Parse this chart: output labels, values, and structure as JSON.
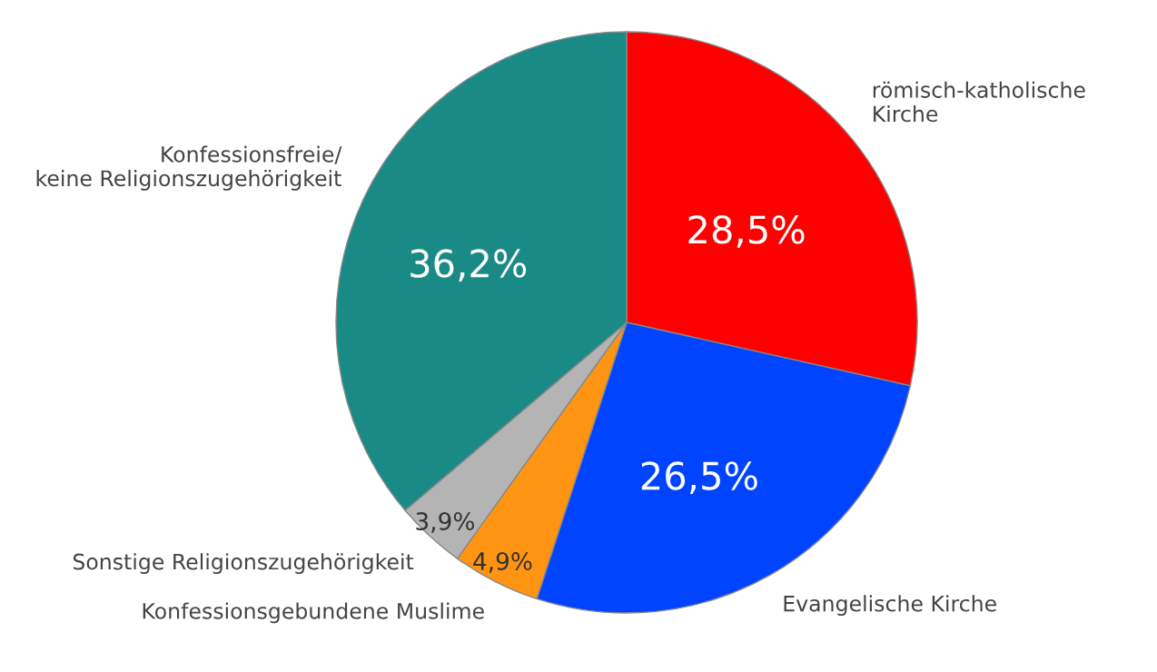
{
  "chart_data": {
    "type": "pie",
    "categories": [
      "römisch-katholische\nKirche",
      "Evangelische Kirche",
      "Konfessionsgebundene Muslime",
      "Sonstige Religionszugehörigkeit",
      "Konfessionsfreie/\nkeine Religionszugehörigkeit"
    ],
    "values": [
      28.5,
      26.5,
      4.9,
      3.9,
      36.2
    ],
    "value_labels": [
      "28,5%",
      "26,5%",
      "4,9%",
      "3,9%",
      "36,2%"
    ],
    "colors": [
      "#ff0000",
      "#0044ff",
      "#ff9412",
      "#b4b4b4",
      "#1a8a87"
    ]
  }
}
